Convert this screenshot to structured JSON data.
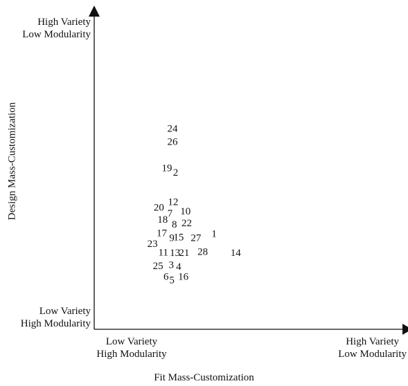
{
  "chart_data": {
    "type": "scatter",
    "title": "",
    "xlabel": "Fit Mass-Customization",
    "ylabel": "Design Mass-Customization",
    "grid": false,
    "legend": false,
    "xlim": [
      0,
      10
    ],
    "ylim": [
      0,
      10
    ],
    "x_ends": {
      "low": [
        "Low Variety",
        "High Modularity"
      ],
      "high": [
        "High Variety",
        "Low Modularity"
      ]
    },
    "y_ends": {
      "low": [
        "Low Variety",
        "High Modularity"
      ],
      "high": [
        "High Variety",
        "Low Modularity"
      ]
    },
    "points": [
      {
        "label": "24",
        "x": 2.54,
        "y": 6.41
      },
      {
        "label": "26",
        "x": 2.54,
        "y": 5.98
      },
      {
        "label": "19",
        "x": 2.36,
        "y": 5.14
      },
      {
        "label": "2",
        "x": 2.64,
        "y": 5.0
      },
      {
        "label": "12",
        "x": 2.56,
        "y": 4.06
      },
      {
        "label": "20",
        "x": 2.1,
        "y": 3.88
      },
      {
        "label": "7",
        "x": 2.46,
        "y": 3.69
      },
      {
        "label": "10",
        "x": 2.96,
        "y": 3.76
      },
      {
        "label": "18",
        "x": 2.22,
        "y": 3.5
      },
      {
        "label": "8",
        "x": 2.6,
        "y": 3.34
      },
      {
        "label": "22",
        "x": 3.0,
        "y": 3.38
      },
      {
        "label": "17",
        "x": 2.19,
        "y": 3.06
      },
      {
        "label": "9",
        "x": 2.52,
        "y": 2.91
      },
      {
        "label": "15",
        "x": 2.74,
        "y": 2.93
      },
      {
        "label": "27",
        "x": 3.3,
        "y": 2.91
      },
      {
        "label": "1",
        "x": 3.89,
        "y": 3.04
      },
      {
        "label": "23",
        "x": 1.89,
        "y": 2.72
      },
      {
        "label": "11",
        "x": 2.24,
        "y": 2.45
      },
      {
        "label": "13",
        "x": 2.62,
        "y": 2.43
      },
      {
        "label": "21",
        "x": 2.92,
        "y": 2.43
      },
      {
        "label": "28",
        "x": 3.52,
        "y": 2.47
      },
      {
        "label": "14",
        "x": 4.59,
        "y": 2.43
      },
      {
        "label": "25",
        "x": 2.07,
        "y": 2.01
      },
      {
        "label": "3",
        "x": 2.5,
        "y": 2.05
      },
      {
        "label": "4",
        "x": 2.74,
        "y": 1.99
      },
      {
        "label": "6",
        "x": 2.33,
        "y": 1.67
      },
      {
        "label": "5",
        "x": 2.52,
        "y": 1.56
      },
      {
        "label": "16",
        "x": 2.89,
        "y": 1.67
      }
    ]
  }
}
